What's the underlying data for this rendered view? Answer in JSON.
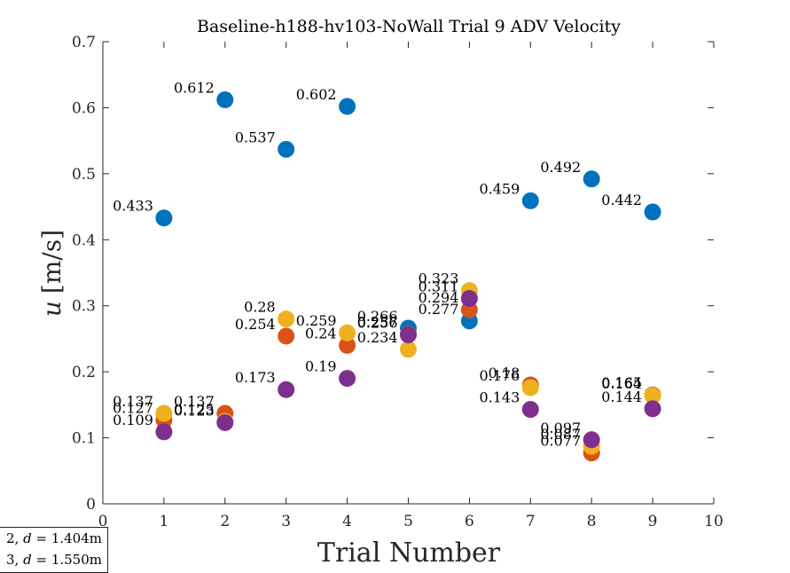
{
  "chart_data": {
    "type": "scatter",
    "title": "Baseline-h188-hv103-NoWall Trial 9 ADV Velocity",
    "xlabel": "Trial Number",
    "ylabel_var": "u",
    "ylabel_unit": "[m/s]",
    "xlim": [
      0,
      10
    ],
    "ylim": [
      0,
      0.7
    ],
    "x_ticks": [
      "0",
      "1",
      "2",
      "3",
      "4",
      "5",
      "6",
      "7",
      "8",
      "9",
      "10"
    ],
    "y_ticks": [
      "0",
      "0.1",
      "0.2",
      "0.3",
      "0.4",
      "0.5",
      "0.6",
      "0.7"
    ],
    "grid": false,
    "legend_position": "bottom-left",
    "x": [
      1,
      2,
      3,
      4,
      5,
      6,
      7,
      8,
      9
    ],
    "series": [
      {
        "color": "#0072BD",
        "values": [
          0.433,
          0.612,
          0.537,
          0.602,
          0.266,
          0.277,
          0.459,
          0.492,
          0.442
        ],
        "labels": [
          "0.433",
          "0.612",
          "0.537",
          "0.602",
          "0.266",
          "0.277",
          "0.459",
          "0.492",
          "0.442"
        ]
      },
      {
        "color": "#D95319",
        "values": [
          0.127,
          0.137,
          0.254,
          0.24,
          0.257,
          0.294,
          0.18,
          0.077,
          0.165
        ],
        "labels": [
          "0.127",
          "0.137",
          "0.254",
          "0.24",
          "0.257",
          "0.294",
          "0.18",
          "0.077",
          "0.165"
        ]
      },
      {
        "color": "#EDB120",
        "values": [
          0.137,
          0.125,
          0.28,
          0.259,
          0.234,
          0.323,
          0.176,
          0.087,
          0.164
        ],
        "labels": [
          "0.137",
          "0.125",
          "0.28",
          "0.259",
          "0.234",
          "0.323",
          "0.176",
          "0.087",
          "0.164"
        ]
      },
      {
        "color": "#7E2F8E",
        "values": [
          0.109,
          0.123,
          0.173,
          0.19,
          0.256,
          0.311,
          0.143,
          0.097,
          0.144
        ],
        "labels": [
          "0.109",
          "0.123",
          "0.173",
          "0.19",
          "0.256",
          "0.311",
          "0.143",
          "0.097",
          "0.144"
        ]
      }
    ],
    "legend_entries": [
      {
        "index": "2",
        "d": "1.404"
      },
      {
        "index": "3",
        "d": "1.550"
      }
    ]
  }
}
